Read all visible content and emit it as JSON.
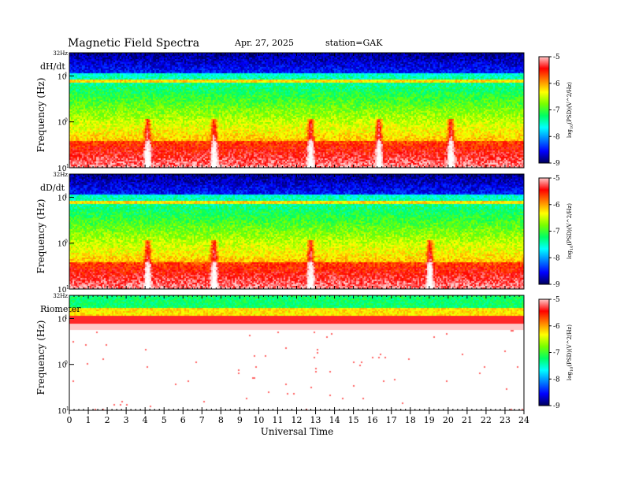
{
  "header": {
    "title": "Magnetic  Field  Spectra",
    "date": "Apr. 27, 2025",
    "station": "station=GAK"
  },
  "colors": {
    "spectrum_scale": [
      "#000066",
      "#0000ff",
      "#0080ff",
      "#00ffff",
      "#00ff66",
      "#66ff00",
      "#ffff00",
      "#ff8000",
      "#ff0000",
      "#ffc8c8",
      "#ffffff"
    ]
  },
  "chart_data": [
    {
      "type": "heatmap",
      "panel_label": "dH/dt",
      "ylabel": "Frequency  (Hz)",
      "y_scale": "log",
      "ylim_hz": [
        0.1,
        32
      ],
      "y_ticks": [
        {
          "value": 32,
          "label": "32Hz"
        },
        {
          "value": 10,
          "label": "10",
          "exp": "1"
        },
        {
          "value": 1,
          "label": "10",
          "exp": "0"
        },
        {
          "value": 0.1,
          "label": "10",
          "exp": "-1"
        }
      ],
      "colorbar": {
        "label": "log10(PSD)(V^2/Hz)",
        "label_main": "log",
        "label_sub": "10",
        "label_rest": "(PSD)(V^2/Hz)",
        "range": [
          -9,
          -5
        ],
        "ticks": [
          "-5",
          "-6",
          "-7",
          "-8",
          "-9"
        ]
      },
      "features": {
        "line_hz": 8,
        "events_ut": [
          4.1,
          7.6,
          12.7,
          16.3,
          20.1
        ],
        "lf_red_level": 0.75
      }
    },
    {
      "type": "heatmap",
      "panel_label": "dD/dt",
      "ylabel": "Frequency  (Hz)",
      "y_scale": "log",
      "ylim_hz": [
        0.1,
        32
      ],
      "y_ticks": [
        {
          "value": 32,
          "label": "32Hz"
        },
        {
          "value": 10,
          "label": "10",
          "exp": "1"
        },
        {
          "value": 1,
          "label": "10",
          "exp": "0"
        },
        {
          "value": 0.1,
          "label": "10",
          "exp": "-1"
        }
      ],
      "colorbar": {
        "label": "log10(PSD)(V^2/Hz)",
        "label_main": "log",
        "label_sub": "10",
        "label_rest": "(PSD)(V^2/Hz)",
        "range": [
          -9,
          -5
        ],
        "ticks": [
          "-5",
          "-6",
          "-7",
          "-8",
          "-9"
        ]
      },
      "features": {
        "line_hz": 8,
        "events_ut": [
          4.1,
          7.6,
          12.7,
          19.0
        ],
        "lf_red_level": 0.7
      }
    },
    {
      "type": "heatmap",
      "panel_label": "Riometer",
      "ylabel": "Frequency  (Hz)",
      "y_scale": "log",
      "ylim_hz": [
        0.1,
        32
      ],
      "y_ticks": [
        {
          "value": 32,
          "label": "32Hz"
        },
        {
          "value": 10,
          "label": "10",
          "exp": "1"
        },
        {
          "value": 1,
          "label": "10",
          "exp": "0"
        },
        {
          "value": 0.1,
          "label": "10",
          "exp": "-1"
        }
      ],
      "colorbar": {
        "label": "log10(PSD)(V^2/Hz)",
        "label_main": "log",
        "label_sub": "10",
        "label_rest": "(PSD)(V^2/Hz)",
        "range": [
          -9,
          -5
        ],
        "ticks": [
          "-5",
          "-6",
          "-7",
          "-8",
          "-9"
        ]
      },
      "features": {
        "red_band_hz": [
          8,
          12
        ],
        "white_below_hz": 6
      }
    }
  ],
  "x_axis": {
    "xlabel": "Universal  Time",
    "xlim_ut": [
      0,
      24
    ],
    "ticks": [
      "0",
      "1",
      "2",
      "3",
      "4",
      "5",
      "6",
      "7",
      "8",
      "9",
      "10",
      "11",
      "12",
      "13",
      "14",
      "15",
      "16",
      "17",
      "18",
      "19",
      "20",
      "21",
      "22",
      "23",
      "24"
    ]
  }
}
